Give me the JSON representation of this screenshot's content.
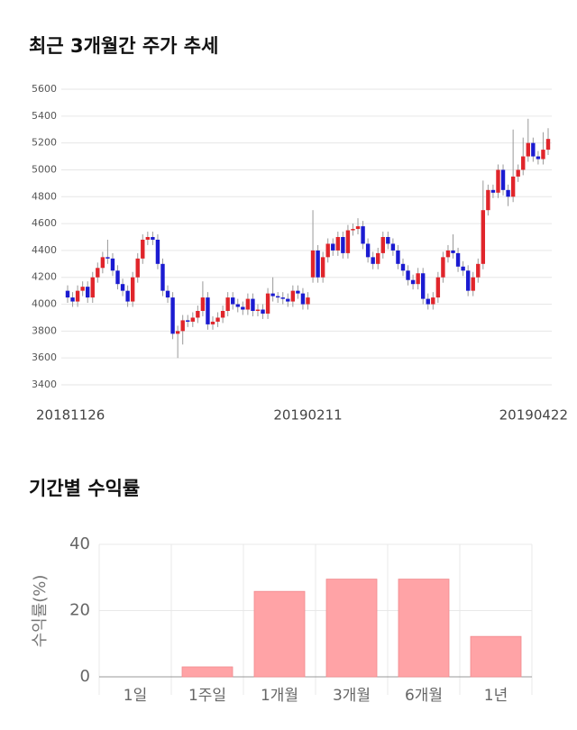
{
  "chart_data": [
    {
      "type": "candlestick",
      "title": "최근 3개월간 주가 추세",
      "categories": [
        "20181126",
        null,
        null,
        null,
        null,
        null,
        null,
        null,
        null,
        null,
        null,
        null,
        null,
        null,
        null,
        null,
        null,
        null,
        null,
        null,
        null,
        null,
        null,
        null,
        null,
        null,
        null,
        null,
        null,
        null,
        null,
        null,
        null,
        null,
        null,
        null,
        null,
        null,
        null,
        null,
        null,
        null,
        null,
        null,
        null,
        null,
        null,
        null,
        "20190211",
        null,
        null,
        null,
        null,
        null,
        null,
        null,
        null,
        null,
        null,
        null,
        null,
        null,
        null,
        null,
        null,
        null,
        null,
        null,
        null,
        null,
        null,
        null,
        null,
        null,
        null,
        null,
        null,
        null,
        null,
        null,
        null,
        null,
        null,
        null,
        null,
        null,
        null,
        null,
        null,
        null,
        null,
        null,
        null,
        null,
        null,
        null,
        "20190422"
      ],
      "ohlc": [
        [
          4100,
          4140,
          4010,
          4050
        ],
        [
          4050,
          4090,
          3980,
          4020
        ],
        [
          4020,
          4140,
          3980,
          4100
        ],
        [
          4100,
          4170,
          4060,
          4130
        ],
        [
          4130,
          4170,
          4010,
          4050
        ],
        [
          4050,
          4240,
          4010,
          4200
        ],
        [
          4200,
          4310,
          4160,
          4270
        ],
        [
          4270,
          4390,
          4230,
          4350
        ],
        [
          4350,
          4480,
          4300,
          4340
        ],
        [
          4340,
          4380,
          4210,
          4250
        ],
        [
          4250,
          4290,
          4110,
          4150
        ],
        [
          4150,
          4190,
          4060,
          4100
        ],
        [
          4100,
          4140,
          3980,
          4020
        ],
        [
          4020,
          4240,
          3980,
          4200
        ],
        [
          4200,
          4380,
          4160,
          4340
        ],
        [
          4340,
          4520,
          4300,
          4480
        ],
        [
          4480,
          4540,
          4440,
          4500
        ],
        [
          4500,
          4540,
          4440,
          4480
        ],
        [
          4480,
          4520,
          4260,
          4300
        ],
        [
          4300,
          4340,
          4060,
          4100
        ],
        [
          4100,
          4140,
          4010,
          4050
        ],
        [
          4050,
          4090,
          3740,
          3780
        ],
        [
          3780,
          3840,
          3600,
          3800
        ],
        [
          3800,
          3920,
          3700,
          3880
        ],
        [
          3880,
          3920,
          3830,
          3870
        ],
        [
          3870,
          3940,
          3830,
          3900
        ],
        [
          3900,
          3990,
          3860,
          3950
        ],
        [
          3950,
          4170,
          3910,
          4050
        ],
        [
          4050,
          4090,
          3810,
          3850
        ],
        [
          3850,
          3910,
          3810,
          3870
        ],
        [
          3870,
          3940,
          3830,
          3900
        ],
        [
          3900,
          3990,
          3860,
          3950
        ],
        [
          3950,
          4090,
          3910,
          4050
        ],
        [
          4050,
          4090,
          3960,
          4000
        ],
        [
          4000,
          4040,
          3940,
          3980
        ],
        [
          3980,
          4020,
          3920,
          3960
        ],
        [
          3960,
          4080,
          3920,
          4040
        ],
        [
          4040,
          4080,
          3910,
          3950
        ],
        [
          3950,
          4000,
          3910,
          3960
        ],
        [
          3960,
          4000,
          3890,
          3930
        ],
        [
          3930,
          4120,
          3890,
          4080
        ],
        [
          4080,
          4200,
          4020,
          4060
        ],
        [
          4060,
          4090,
          4010,
          4050
        ],
        [
          4050,
          4090,
          4000,
          4040
        ],
        [
          4040,
          4080,
          3980,
          4020
        ],
        [
          4020,
          4140,
          3980,
          4100
        ],
        [
          4100,
          4140,
          4040,
          4080
        ],
        [
          4080,
          4120,
          3960,
          4000
        ],
        [
          4000,
          4090,
          3960,
          4050
        ],
        [
          4200,
          4700,
          4160,
          4400
        ],
        [
          4400,
          4440,
          4160,
          4200
        ],
        [
          4200,
          4390,
          4160,
          4350
        ],
        [
          4350,
          4490,
          4310,
          4450
        ],
        [
          4450,
          4490,
          4360,
          4400
        ],
        [
          4400,
          4540,
          4360,
          4500
        ],
        [
          4500,
          4540,
          4340,
          4380
        ],
        [
          4380,
          4590,
          4340,
          4550
        ],
        [
          4550,
          4600,
          4510,
          4560
        ],
        [
          4560,
          4640,
          4520,
          4580
        ],
        [
          4580,
          4620,
          4410,
          4450
        ],
        [
          4450,
          4490,
          4310,
          4350
        ],
        [
          4350,
          4390,
          4260,
          4300
        ],
        [
          4300,
          4420,
          4260,
          4380
        ],
        [
          4380,
          4540,
          4340,
          4500
        ],
        [
          4500,
          4540,
          4410,
          4450
        ],
        [
          4450,
          4490,
          4360,
          4400
        ],
        [
          4400,
          4440,
          4260,
          4300
        ],
        [
          4300,
          4340,
          4210,
          4250
        ],
        [
          4250,
          4290,
          4140,
          4180
        ],
        [
          4180,
          4220,
          4110,
          4150
        ],
        [
          4150,
          4270,
          4110,
          4230
        ],
        [
          4230,
          4270,
          4000,
          4040
        ],
        [
          4040,
          4080,
          3960,
          4000
        ],
        [
          4000,
          4090,
          3960,
          4050
        ],
        [
          4050,
          4240,
          4010,
          4200
        ],
        [
          4200,
          4390,
          4160,
          4350
        ],
        [
          4350,
          4440,
          4310,
          4400
        ],
        [
          4400,
          4520,
          4340,
          4380
        ],
        [
          4380,
          4420,
          4240,
          4280
        ],
        [
          4280,
          4320,
          4210,
          4250
        ],
        [
          4250,
          4290,
          4060,
          4100
        ],
        [
          4100,
          4240,
          4060,
          4200
        ],
        [
          4200,
          4340,
          4160,
          4300
        ],
        [
          4300,
          4920,
          4260,
          4700
        ],
        [
          4700,
          4890,
          4660,
          4850
        ],
        [
          4850,
          4890,
          4790,
          4830
        ],
        [
          4830,
          5040,
          4790,
          5000
        ],
        [
          5000,
          5040,
          4810,
          4850
        ],
        [
          4850,
          4890,
          4730,
          4800
        ],
        [
          4800,
          5300,
          4760,
          4950
        ],
        [
          4950,
          5040,
          4910,
          5000
        ],
        [
          5000,
          5240,
          4960,
          5100
        ],
        [
          5100,
          5380,
          5060,
          5200
        ],
        [
          5200,
          5240,
          5060,
          5100
        ],
        [
          5100,
          5140,
          5040,
          5080
        ],
        [
          5080,
          5280,
          5040,
          5150
        ],
        [
          5150,
          5310,
          5110,
          5230
        ]
      ],
      "up_color": "#e0252b",
      "down_color": "#1b1bd1",
      "ylim": [
        3400,
        5600
      ],
      "yticks": [
        3400,
        3600,
        3800,
        4000,
        4200,
        4400,
        4600,
        4800,
        5000,
        5200,
        5400,
        5600
      ],
      "grid": true
    },
    {
      "type": "bar",
      "title": "기간별 수익률",
      "ylabel": "수익률(%)",
      "categories": [
        "1일",
        "1주일",
        "1개월",
        "3개월",
        "6개월",
        "1년"
      ],
      "values": [
        0,
        3,
        25.8,
        29.5,
        29.5,
        12.2
      ],
      "color": "#ffa3a6",
      "ylim": [
        0,
        40
      ],
      "yticks": [
        0,
        20,
        40
      ],
      "grid": true
    }
  ]
}
